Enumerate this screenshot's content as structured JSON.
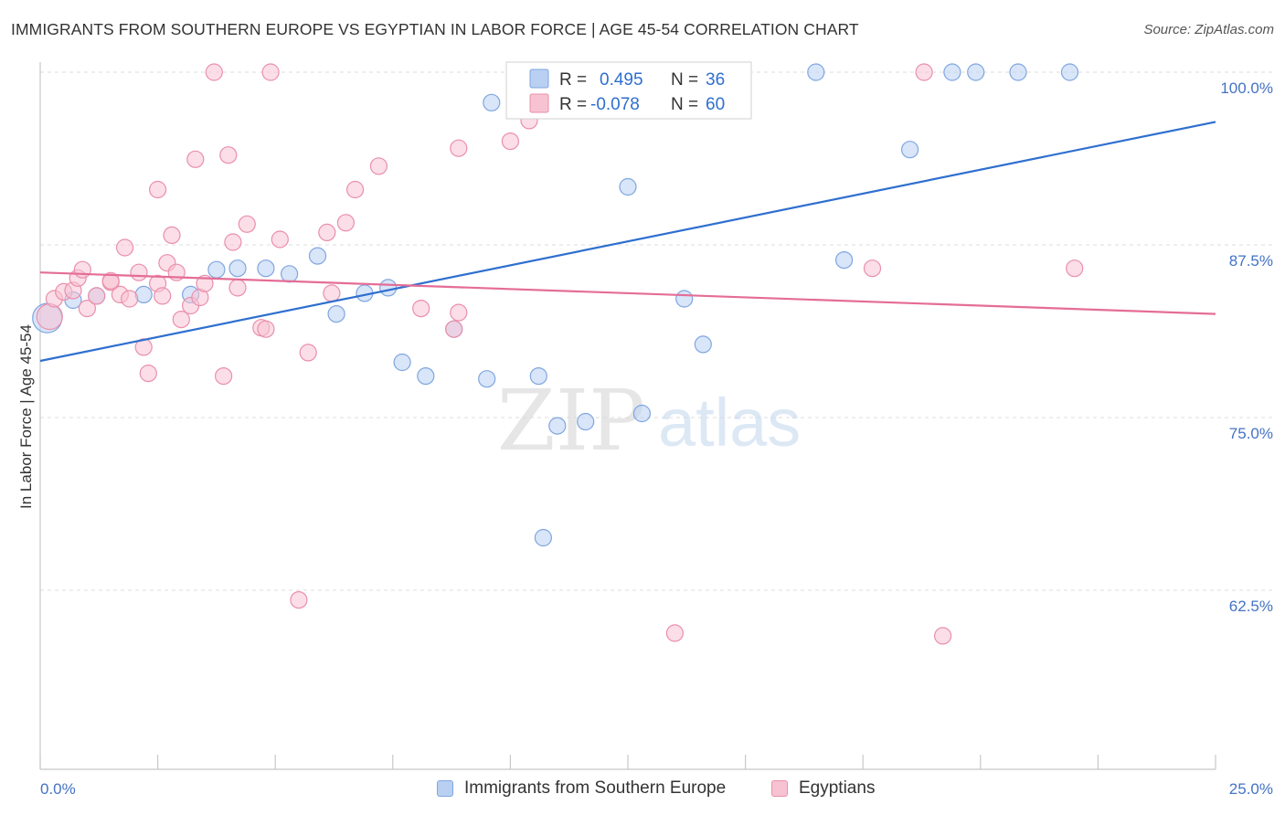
{
  "title": "IMMIGRANTS FROM SOUTHERN EUROPE VS EGYPTIAN IN LABOR FORCE | AGE 45-54 CORRELATION CHART",
  "source": "Source: ZipAtlas.com",
  "watermark": {
    "zip": "ZIP",
    "atlas": "atlas"
  },
  "colors": {
    "blue_fill": "#b9d0f2",
    "blue_stroke": "#7ea6e0",
    "blue_line": "#2e6fcf",
    "pink_fill": "#f7c3d3",
    "pink_stroke": "#ea8fab",
    "pink_line": "#e46d96",
    "axis_text": "#4472c4",
    "grid": "#dddddd"
  },
  "legend": {
    "rows": [
      {
        "r_label": "R =",
        "r_value": "0.495",
        "n_label": "N =",
        "n_value": "36",
        "color": "blue"
      },
      {
        "r_label": "R =",
        "r_value": "-0.078",
        "n_label": "N =",
        "n_value": "60",
        "color": "pink"
      }
    ]
  },
  "chart_data": {
    "type": "scatter",
    "title": "IMMIGRANTS FROM SOUTHERN EUROPE VS EGYPTIAN IN LABOR FORCE | AGE 45-54 CORRELATION CHART",
    "xlabel": "",
    "ylabel": "In Labor Force | Age 45-54",
    "xlim": [
      0,
      25
    ],
    "ylim": [
      50,
      101.5
    ],
    "x_tick_labels": [
      "0.0%",
      "25.0%"
    ],
    "y_ticks": [
      62.5,
      75.0,
      87.5,
      100.0
    ],
    "y_tick_labels": [
      "62.5%",
      "75.0%",
      "87.5%",
      "100.0%"
    ],
    "grid": "horizontal dashed",
    "legend_position": "bottom",
    "series": [
      {
        "name": "Immigrants from Southern Europe",
        "color": "blue",
        "trend": {
          "x": [
            0,
            25
          ],
          "y": [
            79.1,
            96.4
          ]
        },
        "points": [
          [
            0.15,
            82.2,
            16
          ],
          [
            0.7,
            83.5,
            9
          ],
          [
            1.2,
            83.8,
            9
          ],
          [
            2.2,
            83.9,
            9
          ],
          [
            3.2,
            83.9,
            9
          ],
          [
            3.75,
            85.7,
            9
          ],
          [
            4.2,
            85.8,
            9
          ],
          [
            4.8,
            85.8,
            9
          ],
          [
            5.3,
            85.4,
            9
          ],
          [
            5.9,
            86.7,
            9
          ],
          [
            6.3,
            82.5,
            9
          ],
          [
            6.9,
            84.0,
            9
          ],
          [
            7.4,
            84.4,
            9
          ],
          [
            7.7,
            79.0,
            9
          ],
          [
            8.2,
            78.0,
            9
          ],
          [
            8.8,
            81.4,
            9
          ],
          [
            9.5,
            77.8,
            9
          ],
          [
            9.6,
            97.8,
            9
          ],
          [
            10.6,
            78.0,
            9
          ],
          [
            10.7,
            66.3,
            9
          ],
          [
            11.0,
            74.4,
            9
          ],
          [
            11.6,
            74.7,
            9
          ],
          [
            12.5,
            91.7,
            9
          ],
          [
            12.8,
            75.3,
            9
          ],
          [
            13.2,
            99.8,
            9
          ],
          [
            13.7,
            83.6,
            9
          ],
          [
            14.1,
            80.3,
            9
          ],
          [
            14.5,
            100.0,
            9
          ],
          [
            16.5,
            100.0,
            9
          ],
          [
            17.1,
            86.4,
            9
          ],
          [
            18.5,
            94.4,
            9
          ],
          [
            19.4,
            100.0,
            9
          ],
          [
            19.9,
            100.0,
            9
          ],
          [
            20.8,
            100.0,
            9
          ],
          [
            21.9,
            100.0,
            9
          ]
        ]
      },
      {
        "name": "Egyptians",
        "color": "pink",
        "trend": {
          "x": [
            0,
            25
          ],
          "y": [
            85.5,
            82.5
          ]
        },
        "points": [
          [
            0.2,
            82.3,
            14
          ],
          [
            0.3,
            83.6,
            9
          ],
          [
            0.5,
            84.1,
            9
          ],
          [
            0.7,
            84.2,
            9
          ],
          [
            0.8,
            85.1,
            9
          ],
          [
            0.9,
            85.7,
            9
          ],
          [
            1.0,
            82.9,
            9
          ],
          [
            1.2,
            83.8,
            9
          ],
          [
            1.5,
            84.8,
            9
          ],
          [
            1.5,
            84.9,
            9
          ],
          [
            1.7,
            83.9,
            9
          ],
          [
            1.8,
            87.3,
            9
          ],
          [
            1.9,
            83.6,
            9
          ],
          [
            2.1,
            85.5,
            9
          ],
          [
            2.2,
            80.1,
            9
          ],
          [
            2.3,
            78.2,
            9
          ],
          [
            2.5,
            84.7,
            9
          ],
          [
            2.5,
            91.5,
            9
          ],
          [
            2.6,
            83.8,
            9
          ],
          [
            2.7,
            86.2,
            9
          ],
          [
            2.8,
            88.2,
            9
          ],
          [
            2.9,
            85.5,
            9
          ],
          [
            3.0,
            82.1,
            9
          ],
          [
            3.2,
            83.1,
            9
          ],
          [
            3.3,
            93.7,
            9
          ],
          [
            3.4,
            83.7,
            9
          ],
          [
            3.5,
            84.7,
            9
          ],
          [
            3.7,
            100.0,
            9
          ],
          [
            3.9,
            78.0,
            9
          ],
          [
            4.0,
            94.0,
            9
          ],
          [
            4.1,
            87.7,
            9
          ],
          [
            4.2,
            84.4,
            9
          ],
          [
            4.4,
            89.0,
            9
          ],
          [
            4.7,
            81.5,
            9
          ],
          [
            4.8,
            81.4,
            9
          ],
          [
            4.9,
            100.0,
            9
          ],
          [
            5.1,
            87.9,
            9
          ],
          [
            5.5,
            61.8,
            9
          ],
          [
            5.7,
            79.7,
            9
          ],
          [
            6.1,
            88.4,
            9
          ],
          [
            6.2,
            84.0,
            9
          ],
          [
            6.5,
            89.1,
            9
          ],
          [
            6.7,
            91.5,
            9
          ],
          [
            7.2,
            93.2,
            9
          ],
          [
            8.1,
            82.9,
            9
          ],
          [
            8.8,
            81.4,
            9
          ],
          [
            8.9,
            82.6,
            9
          ],
          [
            8.9,
            94.5,
            9
          ],
          [
            10.0,
            95.0,
            9
          ],
          [
            10.4,
            96.5,
            9
          ],
          [
            12.8,
            99.9,
            9
          ],
          [
            13.5,
            59.4,
            9
          ],
          [
            17.7,
            85.8,
            9
          ],
          [
            18.8,
            100.0,
            9
          ],
          [
            19.2,
            59.2,
            9
          ],
          [
            22.0,
            85.8,
            9
          ]
        ]
      }
    ]
  }
}
